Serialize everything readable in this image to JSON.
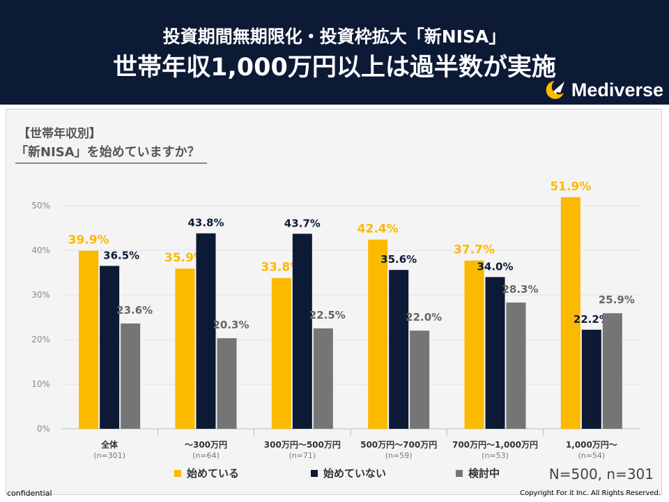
{
  "header": {
    "title_line1": "投資期間無期限化・投資枠拡大「新NISA」",
    "title_line2": "世帯年収1,000万円以上は過半数が実施",
    "logo_text": "Mediverse"
  },
  "question": {
    "line1": "【世帯年収別】",
    "line2": "「新NISA」を始めていますか？"
  },
  "colors": {
    "header_bg": "#0d1a36",
    "series_started": "#fbb900",
    "series_not_started": "#0d1a36",
    "series_considering": "#757575"
  },
  "chart_data": {
    "type": "bar",
    "title": "【世帯年収別】「新NISA」を始めていますか？",
    "xlabel": "",
    "ylabel": "",
    "ylim": [
      0,
      50
    ],
    "yticks": [
      "0%",
      "10%",
      "20%",
      "30%",
      "40%",
      "50%"
    ],
    "grid": true,
    "legend_position": "bottom",
    "categories": [
      "全体",
      "～300万円",
      "300万円～500万円",
      "500万円～700万円",
      "700万円～1,000万円",
      "1,000万円～"
    ],
    "category_n": [
      "(n=301)",
      "(n=64)",
      "(n=71)",
      "(n=59)",
      "(n=53)",
      "(n=54)"
    ],
    "series": [
      {
        "name": "始めている",
        "values": [
          39.9,
          35.9,
          33.8,
          42.4,
          37.7,
          51.9
        ],
        "labels": [
          "39.9%",
          "35.9%",
          "33.8%",
          "42.4%",
          "37.7%",
          "51.9%"
        ]
      },
      {
        "name": "始めていない",
        "values": [
          36.5,
          43.8,
          43.7,
          35.6,
          34.0,
          22.2
        ],
        "labels": [
          "36.5%",
          "43.8%",
          "43.7%",
          "35.6%",
          "34.0%",
          "22.2%"
        ]
      },
      {
        "name": "検討中",
        "values": [
          23.6,
          20.3,
          22.5,
          22.0,
          28.3,
          25.9
        ],
        "labels": [
          "23.6%",
          "20.3%",
          "22.5%",
          "22.0%",
          "28.3%",
          "25.9%"
        ]
      }
    ]
  },
  "legend": {
    "started": "始めている",
    "not_started": "始めていない",
    "considering": "検討中"
  },
  "sample_note": "N=500, n=301",
  "footer": {
    "left": "confidential",
    "right": "Copyright For it Inc. All Rights Reserved."
  }
}
